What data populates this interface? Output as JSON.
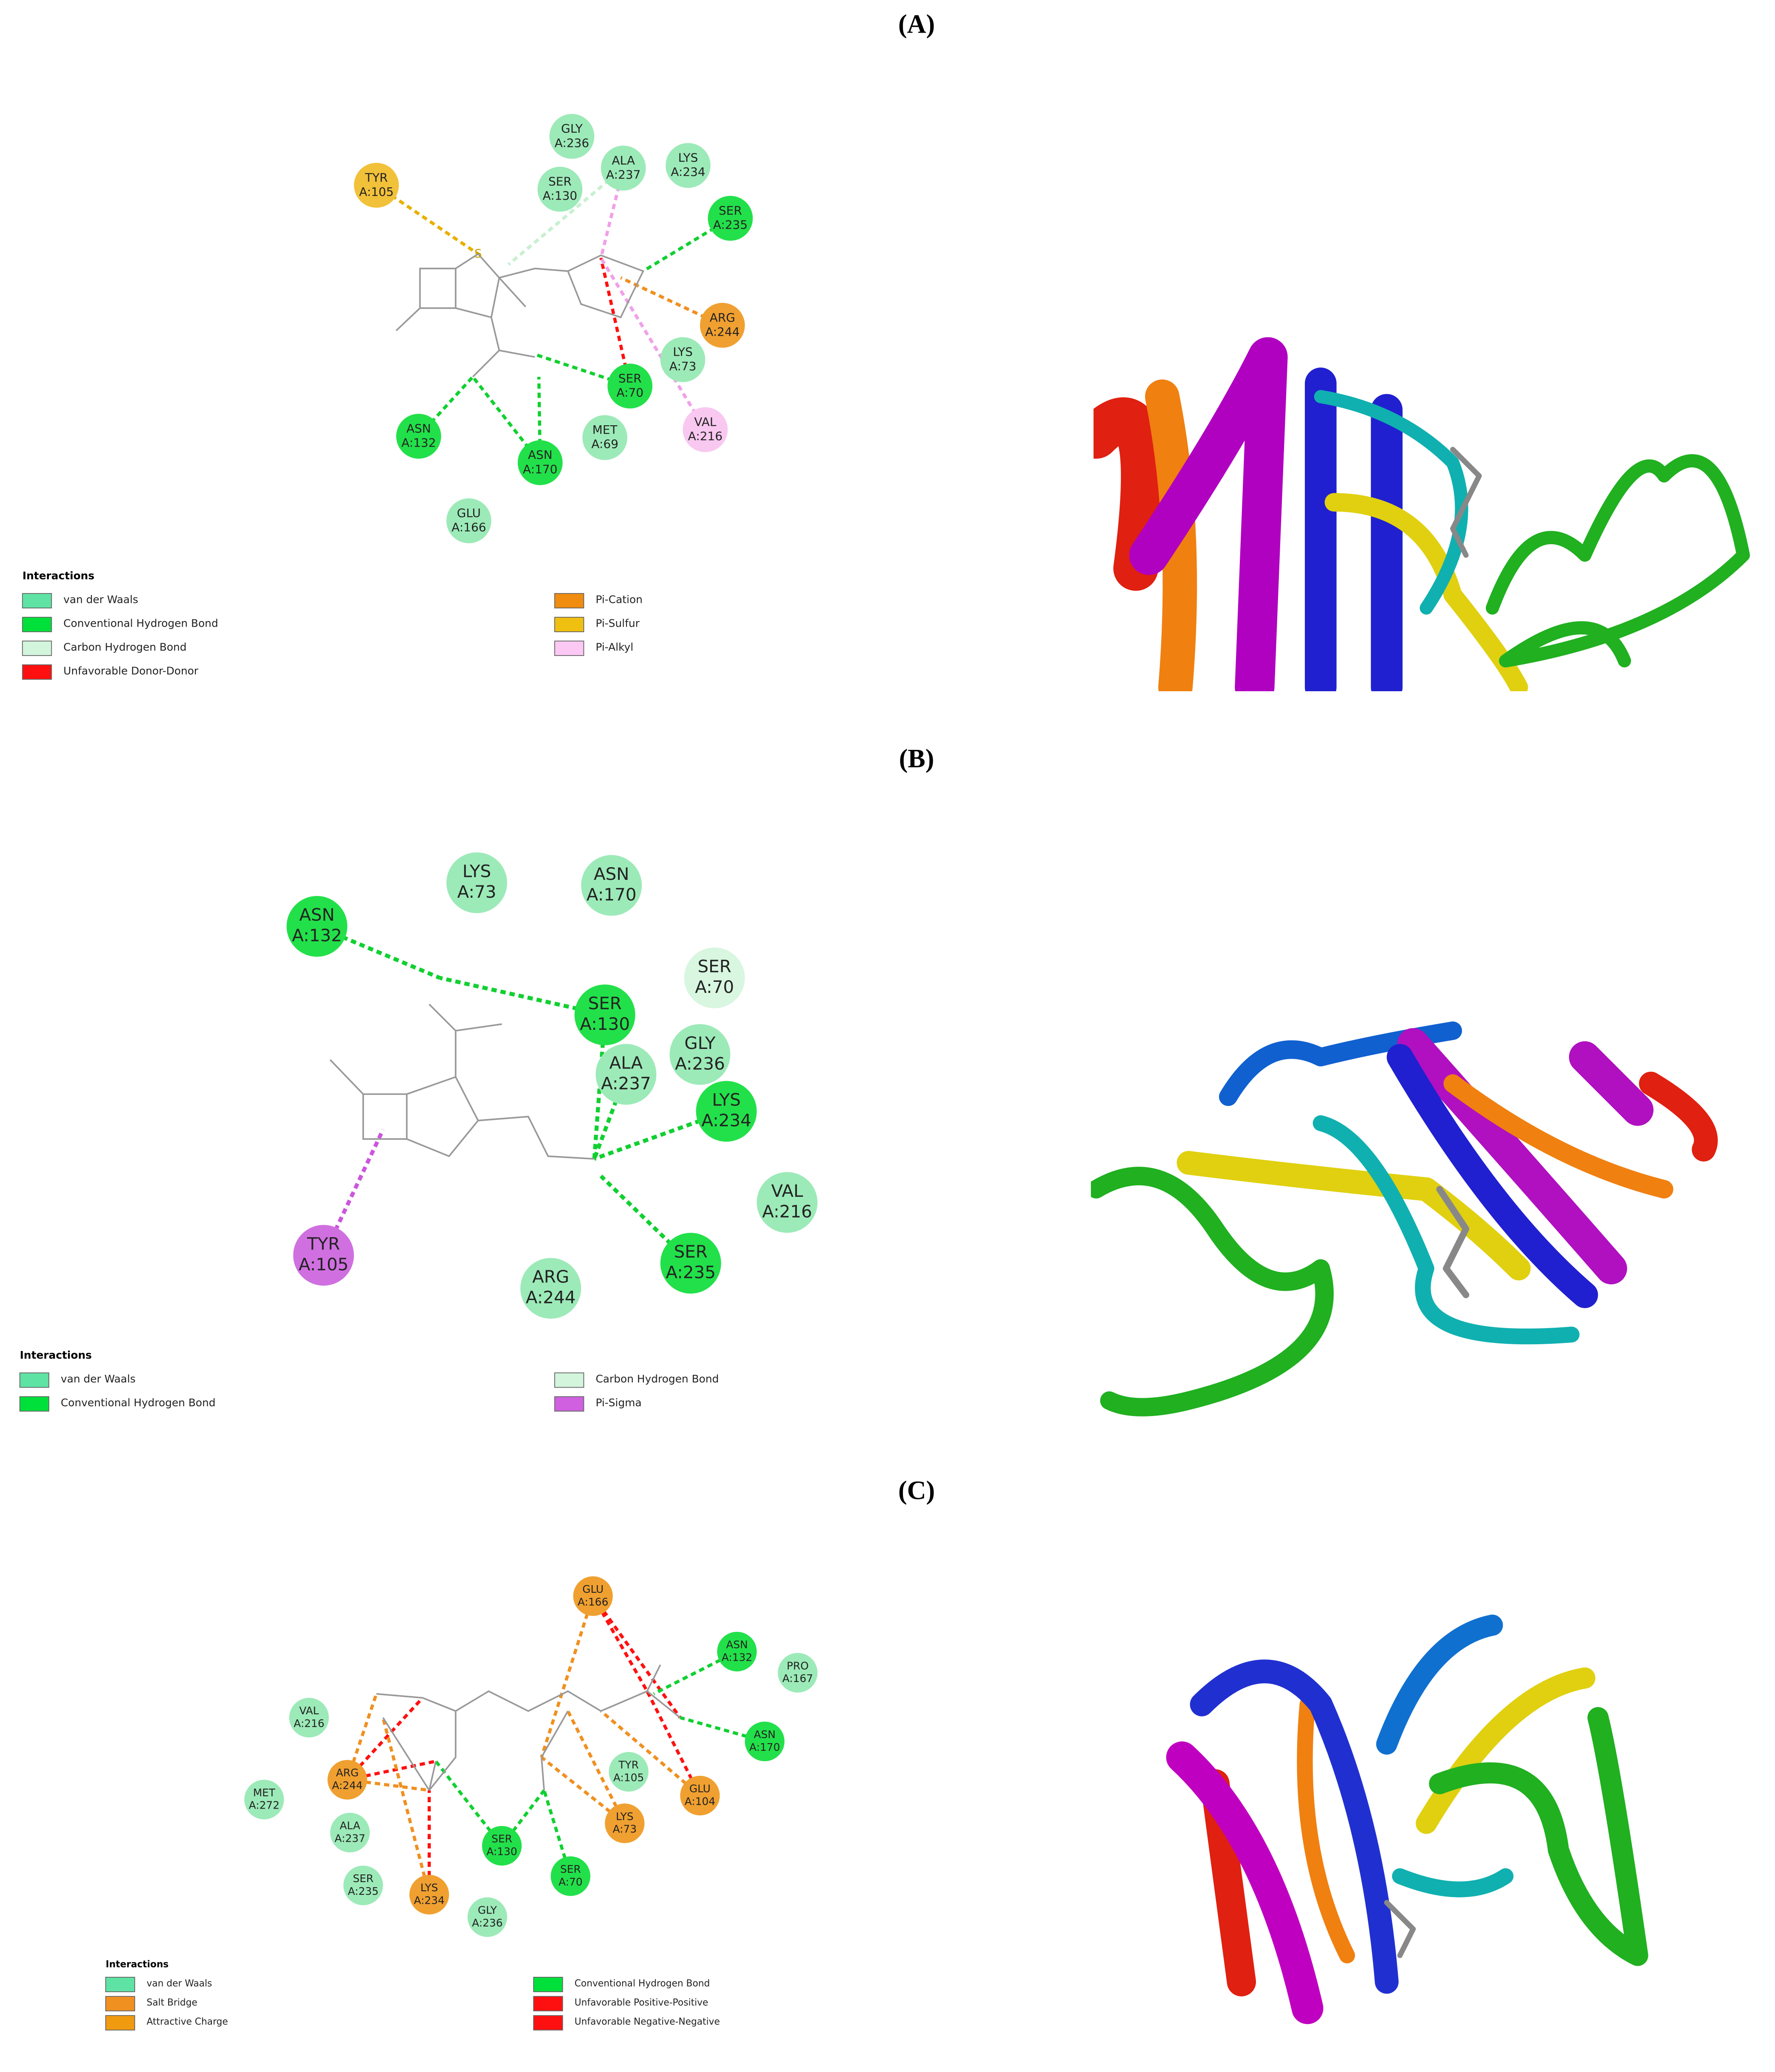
{
  "panels": [
    {
      "label": "(A)",
      "residues": [
        {
          "name": "TYR",
          "id": "A:105",
          "color": "#f2c13a"
        },
        {
          "name": "GLY",
          "id": "A:236",
          "color": "#9ceab8"
        },
        {
          "name": "SER",
          "id": "A:130",
          "color": "#9ceab8"
        },
        {
          "name": "ALA",
          "id": "A:237",
          "color": "#9ceab8"
        },
        {
          "name": "LYS",
          "id": "A:234",
          "color": "#9ceab8"
        },
        {
          "name": "SER",
          "id": "A:235",
          "color": "#22e04a"
        },
        {
          "name": "ARG",
          "id": "A:244",
          "color": "#f0a030"
        },
        {
          "name": "LYS",
          "id": "A:73",
          "color": "#9ceab8"
        },
        {
          "name": "SER",
          "id": "A:70",
          "color": "#22e04a"
        },
        {
          "name": "VAL",
          "id": "A:216",
          "color": "#f8c8f0"
        },
        {
          "name": "MET",
          "id": "A:69",
          "color": "#9ceab8"
        },
        {
          "name": "ASN",
          "id": "A:170",
          "color": "#22e04a"
        },
        {
          "name": "ASN",
          "id": "A:132",
          "color": "#22e04a"
        },
        {
          "name": "GLU",
          "id": "A:166",
          "color": "#9ceab8"
        }
      ],
      "legend": {
        "title": "Interactions",
        "items": [
          {
            "label": "van der Waals",
            "color": "#5ee3a4"
          },
          {
            "label": "Conventional Hydrogen Bond",
            "color": "#00e03a"
          },
          {
            "label": "Carbon Hydrogen Bond",
            "color": "#d2f5dc"
          },
          {
            "label": "Unfavorable Donor-Donor",
            "color": "#ff1010"
          },
          {
            "label": "Pi-Cation",
            "color": "#f08c10"
          },
          {
            "label": "Pi-Sulfur",
            "color": "#f0c010"
          },
          {
            "label": "Pi-Alkyl",
            "color": "#fcc8f4"
          }
        ]
      }
    },
    {
      "label": "(B)",
      "residues": [
        {
          "name": "LYS",
          "id": "A:73",
          "color": "#9ceab8"
        },
        {
          "name": "ASN",
          "id": "A:170",
          "color": "#9ceab8"
        },
        {
          "name": "ASN",
          "id": "A:132",
          "color": "#22e04a"
        },
        {
          "name": "SER",
          "id": "A:70",
          "color": "#d8f6e0"
        },
        {
          "name": "SER",
          "id": "A:130",
          "color": "#22e04a"
        },
        {
          "name": "GLY",
          "id": "A:236",
          "color": "#9ceab8"
        },
        {
          "name": "ALA",
          "id": "A:237",
          "color": "#9ceab8"
        },
        {
          "name": "LYS",
          "id": "A:234",
          "color": "#22e04a"
        },
        {
          "name": "VAL",
          "id": "A:216",
          "color": "#9ceab8"
        },
        {
          "name": "TYR",
          "id": "A:105",
          "color": "#d070e0"
        },
        {
          "name": "ARG",
          "id": "A:244",
          "color": "#9ceab8"
        },
        {
          "name": "SER",
          "id": "A:235",
          "color": "#22e04a"
        }
      ],
      "legend": {
        "title": "Interactions",
        "items": [
          {
            "label": "van der Waals",
            "color": "#5ee3a4"
          },
          {
            "label": "Conventional Hydrogen Bond",
            "color": "#00e03a"
          },
          {
            "label": "Carbon Hydrogen Bond",
            "color": "#d2f5dc"
          },
          {
            "label": "Pi-Sigma",
            "color": "#d060e0"
          }
        ]
      }
    },
    {
      "label": "(C)",
      "residues": [
        {
          "name": "GLU",
          "id": "A:166",
          "color": "#f0a030"
        },
        {
          "name": "ASN",
          "id": "A:132",
          "color": "#22e04a"
        },
        {
          "name": "PRO",
          "id": "A:167",
          "color": "#9ceab8"
        },
        {
          "name": "VAL",
          "id": "A:216",
          "color": "#9ceab8"
        },
        {
          "name": "ASN",
          "id": "A:170",
          "color": "#22e04a"
        },
        {
          "name": "ARG",
          "id": "A:244",
          "color": "#f0a030"
        },
        {
          "name": "TYR",
          "id": "A:105",
          "color": "#9ceab8"
        },
        {
          "name": "GLU",
          "id": "A:104",
          "color": "#f0a030"
        },
        {
          "name": "MET",
          "id": "A:272",
          "color": "#9ceab8"
        },
        {
          "name": "ALA",
          "id": "A:237",
          "color": "#9ceab8"
        },
        {
          "name": "LYS",
          "id": "A:73",
          "color": "#f0a030"
        },
        {
          "name": "SER",
          "id": "A:130",
          "color": "#22e04a"
        },
        {
          "name": "SER",
          "id": "A:235",
          "color": "#9ceab8"
        },
        {
          "name": "LYS",
          "id": "A:234",
          "color": "#f0a030"
        },
        {
          "name": "SER",
          "id": "A:70",
          "color": "#22e04a"
        },
        {
          "name": "GLY",
          "id": "A:236",
          "color": "#9ceab8"
        }
      ],
      "legend": {
        "title": "Interactions",
        "items": [
          {
            "label": "van der Waals",
            "color": "#5ee3a4"
          },
          {
            "label": "Salt Bridge",
            "color": "#f09020"
          },
          {
            "label": "Attractive Charge",
            "color": "#f09a10"
          },
          {
            "label": "Conventional Hydrogen Bond",
            "color": "#00e03a"
          },
          {
            "label": "Unfavorable Positive-Positive",
            "color": "#ff1010"
          },
          {
            "label": "Unfavorable Negative-Negative",
            "color": "#ff1010"
          }
        ]
      }
    }
  ]
}
